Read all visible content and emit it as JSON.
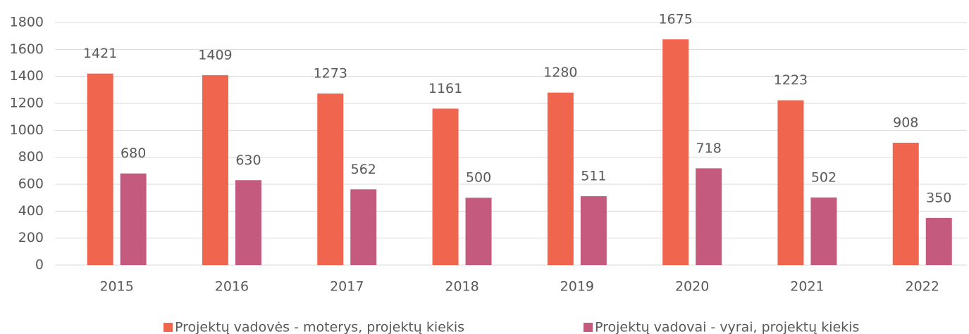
{
  "chart_data": {
    "type": "bar",
    "categories": [
      "2015",
      "2016",
      "2017",
      "2018",
      "2019",
      "2020",
      "2021",
      "2022"
    ],
    "series": [
      {
        "name": "Projektų vadovės - moterys, projektų kiekis",
        "color": "#f0654d",
        "values": [
          1421,
          1409,
          1273,
          1161,
          1280,
          1675,
          1223,
          908
        ]
      },
      {
        "name": "Projektų vadovai - vyrai, projektų kiekis",
        "color": "#c45a7e",
        "values": [
          680,
          630,
          562,
          500,
          511,
          718,
          502,
          350
        ]
      }
    ],
    "ylim": [
      0,
      1800
    ],
    "yticks": [
      0,
      200,
      400,
      600,
      800,
      1000,
      1200,
      1400,
      1600,
      1800
    ],
    "grid": true,
    "legend": "bottom"
  }
}
